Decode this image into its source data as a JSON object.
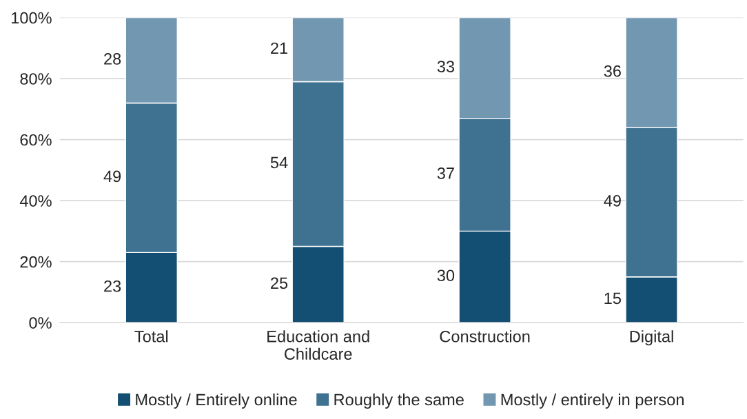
{
  "chart_data": {
    "type": "bar",
    "stacked": true,
    "categories": [
      "Total",
      "Education and\nChildcare",
      "Construction",
      "Digital"
    ],
    "series": [
      {
        "name": "Mostly / Entirely online",
        "color": "#134f72",
        "values": [
          23,
          25,
          30,
          15
        ]
      },
      {
        "name": "Roughly the same",
        "color": "#3f7190",
        "values": [
          49,
          54,
          37,
          49
        ]
      },
      {
        "name": "Mostly / entirely in person",
        "color": "#7297b0",
        "values": [
          28,
          21,
          33,
          36
        ]
      }
    ],
    "ylim": [
      0,
      100
    ],
    "yticks": [
      {
        "value": 0,
        "label": "0%"
      },
      {
        "value": 20,
        "label": "20%"
      },
      {
        "value": 40,
        "label": "40%"
      },
      {
        "value": 60,
        "label": "60%"
      },
      {
        "value": 80,
        "label": "80%"
      },
      {
        "value": 100,
        "label": "100%"
      }
    ],
    "grid": "y",
    "legend": "bottom",
    "data_labels": true
  }
}
